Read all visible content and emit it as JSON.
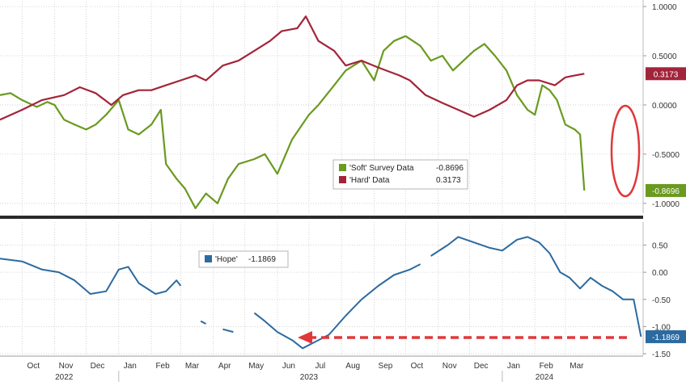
{
  "chart_data": [
    {
      "type": "line",
      "panel": "top",
      "ylim": [
        -1.1,
        1.05
      ],
      "yticks": [
        1.0,
        0.5,
        0.0,
        -0.5,
        -1.0
      ],
      "ytick_labels": [
        "1.0000",
        "0.5000",
        "0.0000",
        "-0.5000",
        "-1.0000"
      ],
      "grid": true,
      "legend_placement": "lower-center",
      "series": [
        {
          "name": "'Soft' Survey Data",
          "last_label": "-0.8696",
          "last_value": -0.8696,
          "color": "#6a9a1f",
          "points": [
            [
              "2022-09-10",
              0.1
            ],
            [
              "2022-09-20",
              0.12
            ],
            [
              "2022-10-01",
              0.05
            ],
            [
              "2022-10-15",
              -0.02
            ],
            [
              "2022-10-25",
              0.03
            ],
            [
              "2022-11-01",
              0.0
            ],
            [
              "2022-11-10",
              -0.15
            ],
            [
              "2022-11-20",
              -0.2
            ],
            [
              "2022-12-01",
              -0.25
            ],
            [
              "2022-12-10",
              -0.2
            ],
            [
              "2022-12-20",
              -0.1
            ],
            [
              "2023-01-01",
              0.05
            ],
            [
              "2023-01-10",
              -0.25
            ],
            [
              "2023-01-20",
              -0.3
            ],
            [
              "2023-02-01",
              -0.2
            ],
            [
              "2023-02-10",
              -0.05
            ],
            [
              "2023-02-15",
              -0.6
            ],
            [
              "2023-02-25",
              -0.75
            ],
            [
              "2023-03-05",
              -0.85
            ],
            [
              "2023-03-15",
              -1.05
            ],
            [
              "2023-03-25",
              -0.9
            ],
            [
              "2023-04-05",
              -1.0
            ],
            [
              "2023-04-15",
              -0.75
            ],
            [
              "2023-04-25",
              -0.6
            ],
            [
              "2023-05-10",
              -0.55
            ],
            [
              "2023-05-20",
              -0.5
            ],
            [
              "2023-06-01",
              -0.7
            ],
            [
              "2023-06-15",
              -0.35
            ],
            [
              "2023-07-01",
              -0.1
            ],
            [
              "2023-07-10",
              0.0
            ],
            [
              "2023-07-25",
              0.2
            ],
            [
              "2023-08-05",
              0.35
            ],
            [
              "2023-08-20",
              0.45
            ],
            [
              "2023-09-01",
              0.25
            ],
            [
              "2023-09-10",
              0.55
            ],
            [
              "2023-09-20",
              0.65
            ],
            [
              "2023-10-01",
              0.7
            ],
            [
              "2023-10-15",
              0.6
            ],
            [
              "2023-10-25",
              0.45
            ],
            [
              "2023-11-05",
              0.5
            ],
            [
              "2023-11-15",
              0.35
            ],
            [
              "2023-11-25",
              0.45
            ],
            [
              "2023-12-05",
              0.55
            ],
            [
              "2023-12-15",
              0.62
            ],
            [
              "2023-12-25",
              0.5
            ],
            [
              "2024-01-05",
              0.35
            ],
            [
              "2024-01-15",
              0.1
            ],
            [
              "2024-01-25",
              -0.05
            ],
            [
              "2024-02-01",
              -0.1
            ],
            [
              "2024-02-08",
              0.2
            ],
            [
              "2024-02-15",
              0.15
            ],
            [
              "2024-02-22",
              0.05
            ],
            [
              "2024-03-01",
              -0.2
            ],
            [
              "2024-03-10",
              -0.25
            ],
            [
              "2024-03-15",
              -0.3
            ],
            [
              "2024-03-19",
              -0.8696
            ]
          ]
        },
        {
          "name": "'Hard' Data",
          "last_label": "0.3173",
          "last_value": 0.3173,
          "color": "#a3243a",
          "points": [
            [
              "2022-09-10",
              -0.15
            ],
            [
              "2022-10-01",
              -0.05
            ],
            [
              "2022-10-20",
              0.05
            ],
            [
              "2022-11-10",
              0.1
            ],
            [
              "2022-11-25",
              0.18
            ],
            [
              "2022-12-10",
              0.12
            ],
            [
              "2022-12-25",
              0.0
            ],
            [
              "2023-01-05",
              0.1
            ],
            [
              "2023-01-20",
              0.15
            ],
            [
              "2023-02-01",
              0.15
            ],
            [
              "2023-02-15",
              0.2
            ],
            [
              "2023-03-01",
              0.25
            ],
            [
              "2023-03-15",
              0.3
            ],
            [
              "2023-03-25",
              0.25
            ],
            [
              "2023-04-10",
              0.4
            ],
            [
              "2023-04-25",
              0.45
            ],
            [
              "2023-05-10",
              0.55
            ],
            [
              "2023-05-25",
              0.65
            ],
            [
              "2023-06-05",
              0.75
            ],
            [
              "2023-06-20",
              0.78
            ],
            [
              "2023-06-28",
              0.9
            ],
            [
              "2023-07-10",
              0.65
            ],
            [
              "2023-07-25",
              0.55
            ],
            [
              "2023-08-05",
              0.4
            ],
            [
              "2023-08-20",
              0.45
            ],
            [
              "2023-09-05",
              0.38
            ],
            [
              "2023-09-25",
              0.3
            ],
            [
              "2023-10-05",
              0.25
            ],
            [
              "2023-10-20",
              0.1
            ],
            [
              "2023-11-05",
              0.02
            ],
            [
              "2023-11-20",
              -0.05
            ],
            [
              "2023-12-05",
              -0.12
            ],
            [
              "2023-12-20",
              -0.05
            ],
            [
              "2024-01-05",
              0.05
            ],
            [
              "2024-01-15",
              0.2
            ],
            [
              "2024-01-25",
              0.25
            ],
            [
              "2024-02-05",
              0.25
            ],
            [
              "2024-02-20",
              0.2
            ],
            [
              "2024-03-01",
              0.28
            ],
            [
              "2024-03-10",
              0.3
            ],
            [
              "2024-03-19",
              0.3173
            ]
          ]
        }
      ]
    },
    {
      "type": "line",
      "panel": "bottom",
      "ylim": [
        -1.5,
        0.85
      ],
      "yticks": [
        0.5,
        0.0,
        -0.5,
        -1.0,
        -1.5
      ],
      "ytick_labels": [
        "0.50",
        "0.00",
        "-0.50",
        "-1.00",
        "-1.50"
      ],
      "grid": true,
      "legend_placement": "top-left",
      "series": [
        {
          "name": "'Hope'",
          "last_label": "-1.1869",
          "last_value": -1.1869,
          "color": "#2c6aa0",
          "segments": [
            [
              [
                "2022-09-10",
                0.25
              ],
              [
                "2022-10-01",
                0.2
              ],
              [
                "2022-10-20",
                0.05
              ],
              [
                "2022-11-05",
                0.0
              ],
              [
                "2022-11-20",
                -0.15
              ],
              [
                "2022-12-05",
                -0.4
              ],
              [
                "2022-12-20",
                -0.35
              ],
              [
                "2023-01-01",
                0.05
              ],
              [
                "2023-01-10",
                0.1
              ],
              [
                "2023-01-20",
                -0.2
              ],
              [
                "2023-02-05",
                -0.4
              ],
              [
                "2023-02-15",
                -0.35
              ],
              [
                "2023-02-25",
                -0.15
              ],
              [
                "2023-03-01",
                -0.25
              ]
            ],
            [
              [
                "2023-03-20",
                -0.9
              ],
              [
                "2023-03-25",
                -0.95
              ]
            ],
            [
              [
                "2023-04-10",
                -1.05
              ],
              [
                "2023-04-20",
                -1.1
              ]
            ],
            [
              [
                "2023-05-10",
                -0.75
              ],
              [
                "2023-05-20",
                -0.9
              ],
              [
                "2023-06-01",
                -1.1
              ],
              [
                "2023-06-15",
                -1.25
              ],
              [
                "2023-06-25",
                -1.4
              ],
              [
                "2023-07-05",
                -1.3
              ],
              [
                "2023-07-20",
                -1.15
              ],
              [
                "2023-08-05",
                -0.8
              ],
              [
                "2023-08-20",
                -0.5
              ],
              [
                "2023-09-05",
                -0.25
              ],
              [
                "2023-09-20",
                -0.05
              ],
              [
                "2023-10-05",
                0.05
              ],
              [
                "2023-10-15",
                0.15
              ]
            ],
            [
              [
                "2023-10-25",
                0.3
              ],
              [
                "2023-11-10",
                0.5
              ],
              [
                "2023-11-20",
                0.65
              ],
              [
                "2023-12-05",
                0.55
              ],
              [
                "2023-12-20",
                0.45
              ],
              [
                "2024-01-01",
                0.4
              ],
              [
                "2024-01-15",
                0.6
              ],
              [
                "2024-01-25",
                0.65
              ],
              [
                "2024-02-05",
                0.55
              ],
              [
                "2024-02-15",
                0.35
              ],
              [
                "2024-02-25",
                0.0
              ],
              [
                "2024-03-05",
                -0.1
              ],
              [
                "2024-03-15",
                -0.3
              ],
              [
                "2024-03-25",
                -0.1
              ],
              [
                "2024-04-05",
                -0.25
              ],
              [
                "2024-04-15",
                -0.35
              ],
              [
                "2024-04-25",
                -0.5
              ],
              [
                "2024-05-05",
                -0.5
              ],
              [
                "2024-05-12",
                -1.1869
              ]
            ]
          ]
        }
      ]
    },
    {
      "type": "axis",
      "x_tick_labels": [
        "Oct",
        "Nov",
        "Dec",
        "Jan",
        "Feb",
        "Mar",
        "Apr",
        "May",
        "Jun",
        "Jul",
        "Aug",
        "Sep",
        "Oct",
        "Nov",
        "Dec",
        "Jan",
        "Feb",
        "Mar"
      ],
      "x_year_labels": [
        "2022",
        "2023",
        "2024"
      ]
    }
  ],
  "accent_colors": {
    "soft": "#6a9a1f",
    "hard": "#a3243a",
    "hope": "#2c6aa0",
    "highlight": "#e0383a"
  }
}
